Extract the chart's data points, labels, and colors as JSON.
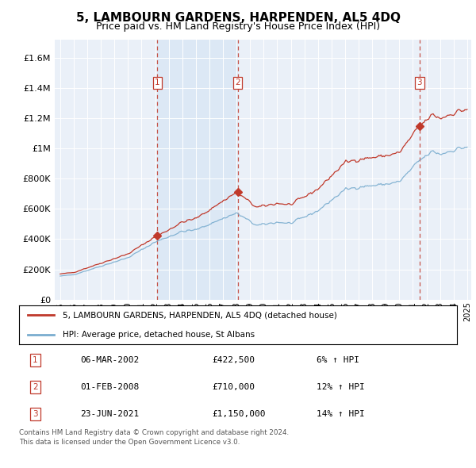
{
  "title": "5, LAMBOURN GARDENS, HARPENDEN, AL5 4DQ",
  "subtitle": "Price paid vs. HM Land Registry's House Price Index (HPI)",
  "legend_line1": "5, LAMBOURN GARDENS, HARPENDEN, AL5 4DQ (detached house)",
  "legend_line2": "HPI: Average price, detached house, St Albans",
  "sale1_date": "06-MAR-2002",
  "sale1_price": 422500,
  "sale1_label": "1",
  "sale1_hpi_pct": "6%",
  "sale2_date": "01-FEB-2008",
  "sale2_price": 710000,
  "sale2_label": "2",
  "sale2_hpi_pct": "12%",
  "sale3_date": "23-JUN-2021",
  "sale3_price": 1150000,
  "sale3_label": "3",
  "sale3_hpi_pct": "14%",
  "footer1": "Contains HM Land Registry data © Crown copyright and database right 2024.",
  "footer2": "This data is licensed under the Open Government Licence v3.0.",
  "hpi_color": "#7aadcf",
  "price_color": "#c0392b",
  "shade_color": "#dce8f5",
  "plot_bg_color": "#eaf0f8",
  "yticks": [
    0,
    200000,
    400000,
    600000,
    800000,
    1000000,
    1200000,
    1400000,
    1600000
  ],
  "ytick_labels": [
    "£0",
    "£200K",
    "£400K",
    "£600K",
    "£800K",
    "£1M",
    "£1.2M",
    "£1.4M",
    "£1.6M"
  ],
  "xstart": 1995,
  "xend": 2025,
  "sale1_year": 2002.17,
  "sale2_year": 2008.08,
  "sale3_year": 2021.48
}
